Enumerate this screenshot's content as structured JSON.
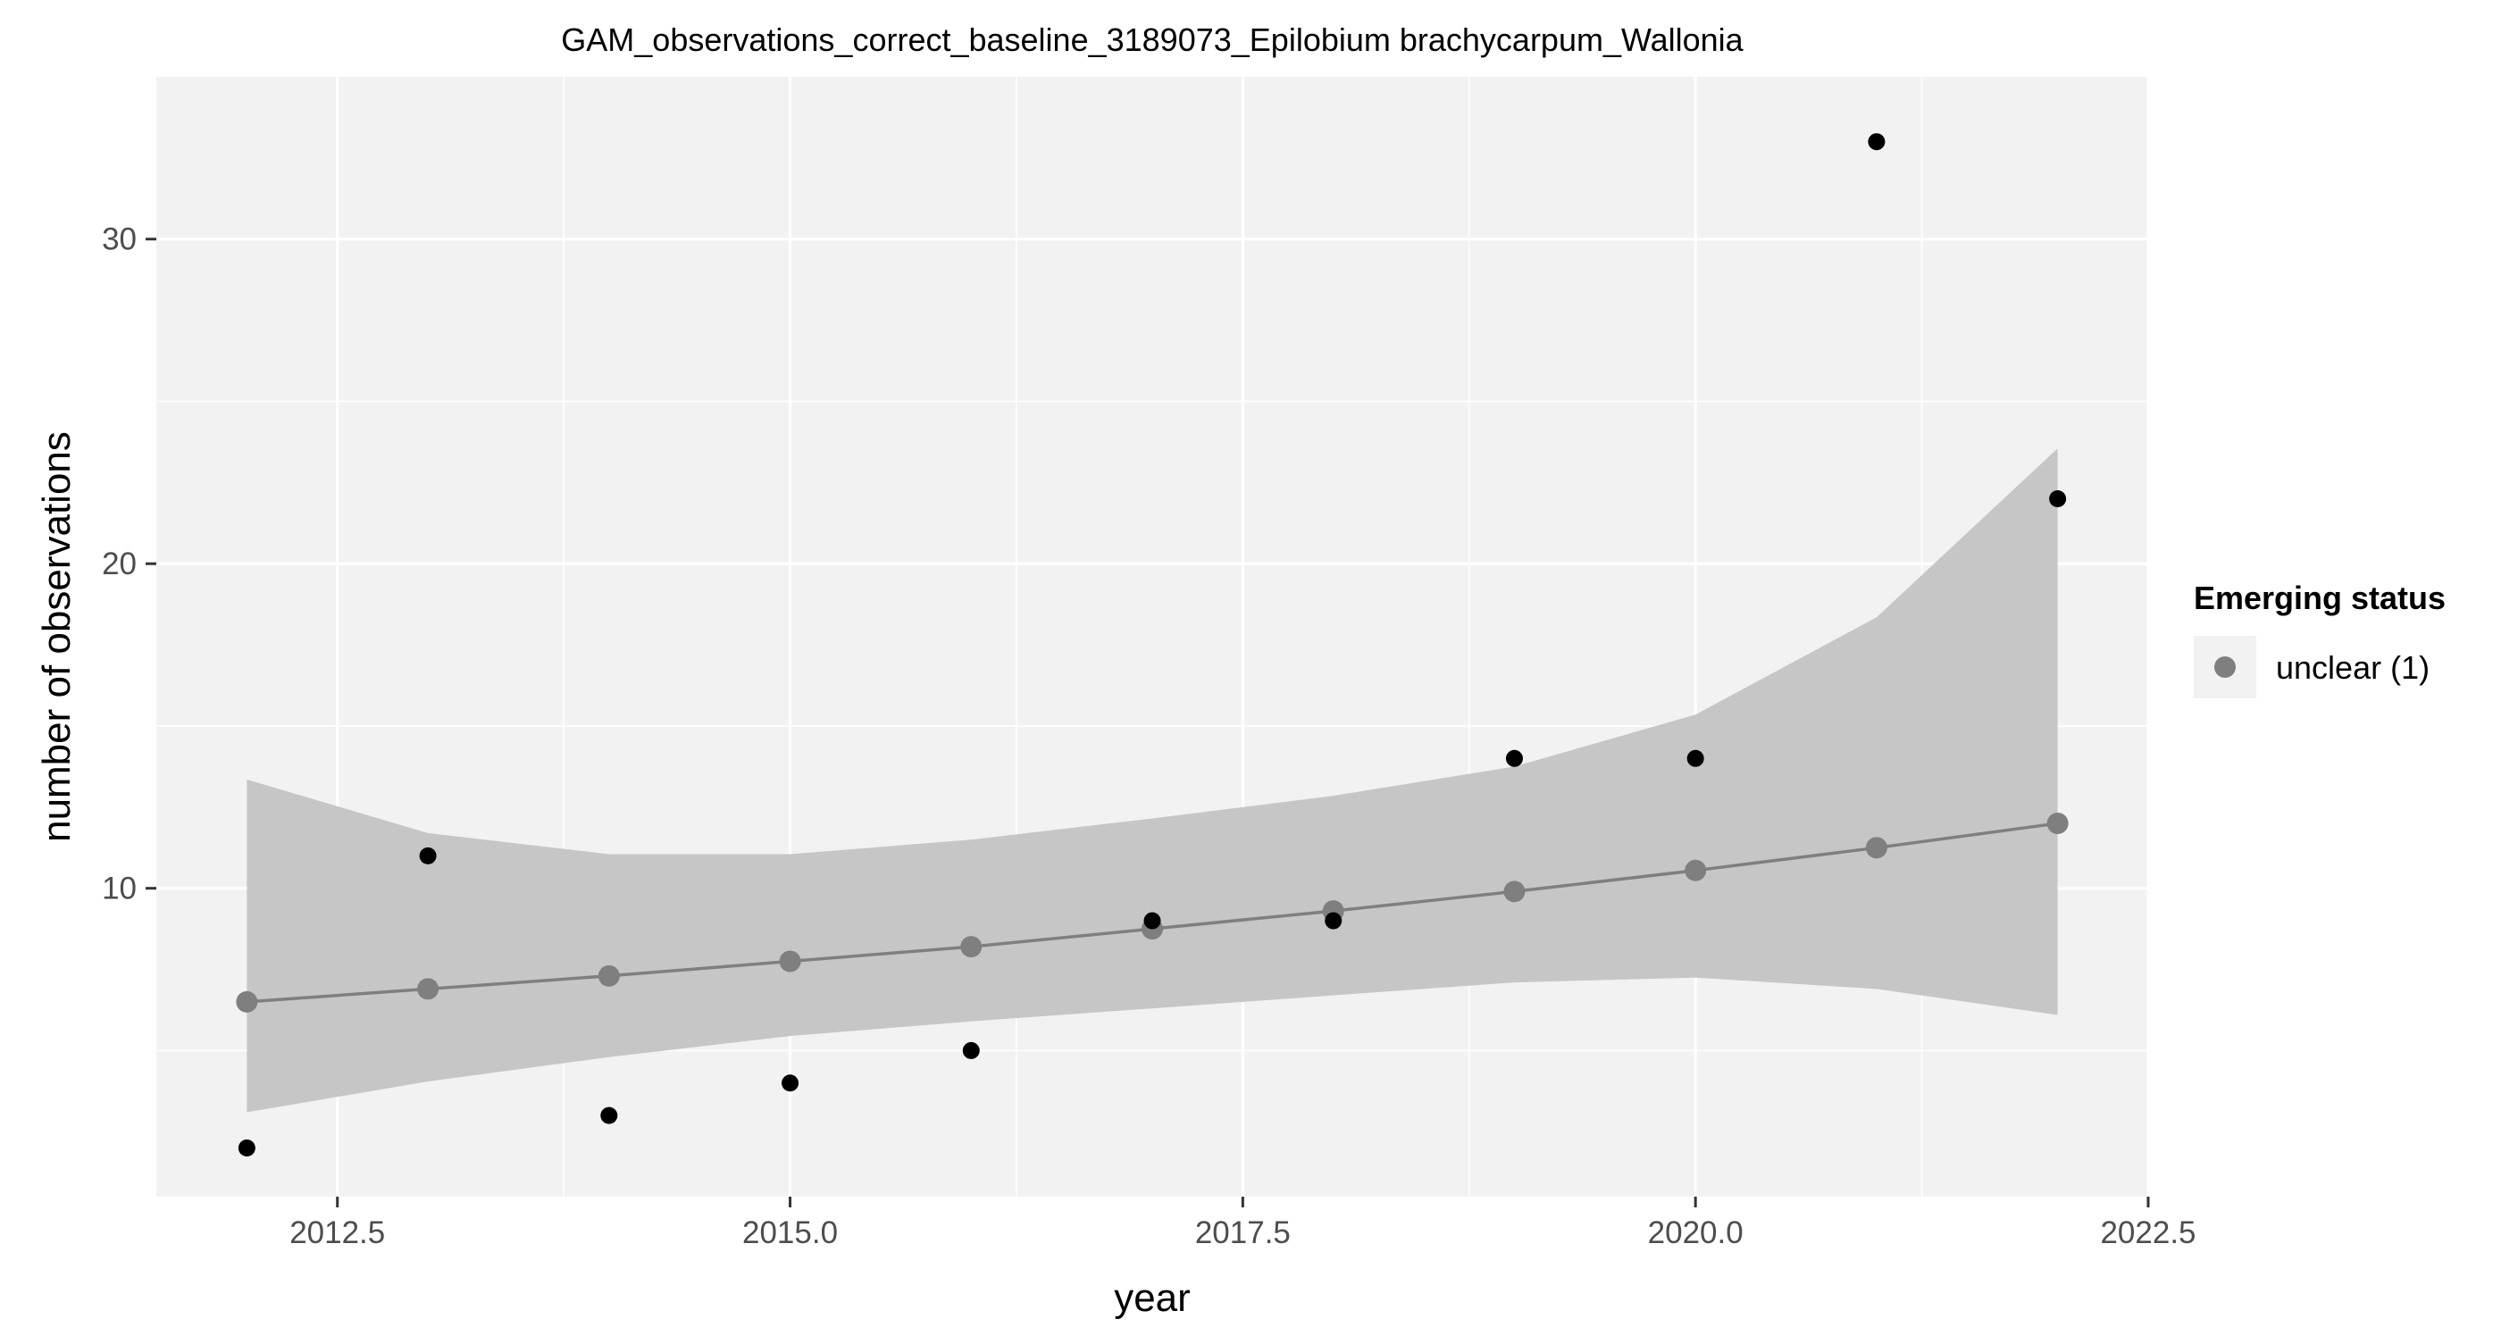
{
  "chart_data": {
    "type": "scatter",
    "title": "GAM_observations_correct_baseline_3189073_Epilobium brachycarpum_Wallonia",
    "xlabel": "year",
    "ylabel": "number of observations",
    "xlim": [
      2011.5,
      2022.5
    ],
    "ylim": [
      0.5,
      35
    ],
    "x_ticks": [
      2012.5,
      2015.0,
      2017.5,
      2020.0,
      2022.5
    ],
    "x_tick_labels": [
      "2012.5",
      "2015.0",
      "2017.5",
      "2020.0",
      "2022.5"
    ],
    "y_ticks": [
      10,
      20,
      30
    ],
    "y_tick_labels": [
      "10",
      "20",
      "30"
    ],
    "grid": true,
    "legend": {
      "title": "Emerging status",
      "position": "right",
      "entries": [
        {
          "label": "unclear (1)",
          "color": "#7f7f7f"
        }
      ]
    },
    "series": [
      {
        "kind": "observed-points",
        "color": "#000000",
        "x": [
          2012,
          2013,
          2014,
          2015,
          2016,
          2017,
          2018,
          2019,
          2020,
          2021,
          2022
        ],
        "y": [
          2,
          11,
          3,
          4,
          5,
          9,
          9,
          14,
          14,
          33,
          22
        ]
      },
      {
        "kind": "fitted-line",
        "color": "#7f7f7f",
        "x": [
          2012,
          2013,
          2014,
          2015,
          2016,
          2017,
          2018,
          2019,
          2020,
          2021,
          2022
        ],
        "y": [
          6.5,
          6.9,
          7.3,
          7.75,
          8.2,
          8.75,
          9.3,
          9.9,
          10.55,
          11.25,
          12.0
        ]
      },
      {
        "kind": "confidence-band",
        "color": "#c6c6c6",
        "x": [
          2012,
          2013,
          2014,
          2015,
          2016,
          2017,
          2018,
          2019,
          2020,
          2021,
          2022
        ],
        "lower": [
          3.1,
          4.05,
          4.8,
          5.45,
          5.9,
          6.3,
          6.7,
          7.1,
          7.25,
          6.9,
          6.1
        ],
        "upper": [
          13.35,
          11.7,
          11.05,
          11.05,
          11.5,
          12.15,
          12.85,
          13.75,
          15.35,
          18.35,
          23.55
        ]
      }
    ],
    "colors": {
      "panel_background": "#f2f2f2",
      "grid": "#ffffff",
      "band": "#c6c6c6",
      "fit": "#7f7f7f",
      "points": "#000000"
    }
  }
}
